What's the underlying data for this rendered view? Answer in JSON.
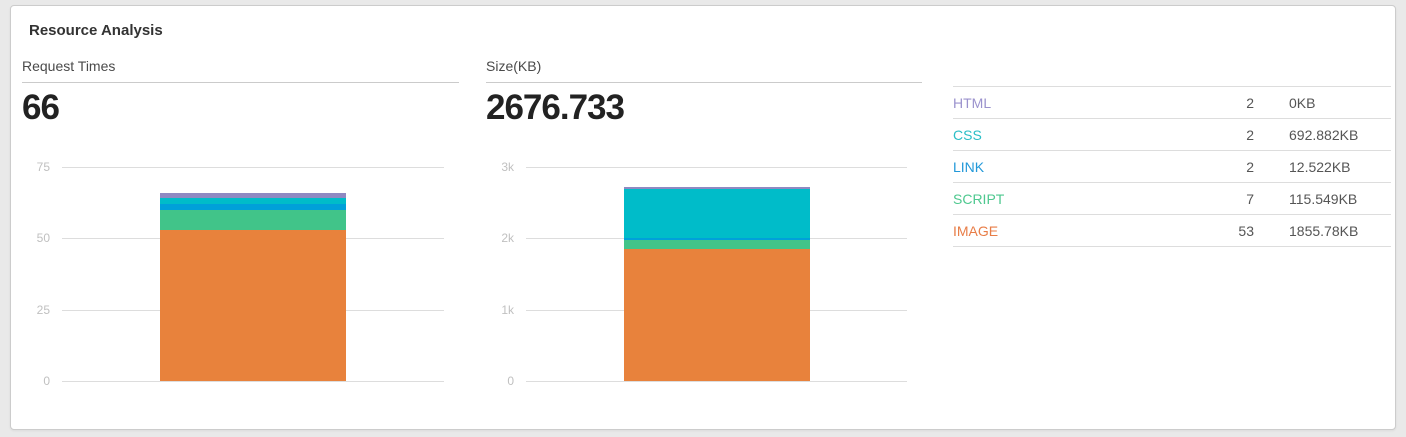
{
  "title": "Resource Analysis",
  "chart_data": [
    {
      "id": "request-times",
      "type": "bar",
      "stacked": true,
      "title": "Request Times",
      "total": "66",
      "ylim": [
        0,
        75
      ],
      "ymax": 75,
      "grid": true,
      "ticks": [
        {
          "value": 75,
          "label": "75"
        },
        {
          "value": 50,
          "label": "50"
        },
        {
          "value": 25,
          "label": "25"
        },
        {
          "value": 0,
          "label": "0"
        }
      ],
      "segments": [
        {
          "name": "HTML",
          "value": 2,
          "color": "#8f89c2"
        },
        {
          "name": "CSS",
          "value": 2,
          "color": "#00bcc9"
        },
        {
          "name": "LINK",
          "value": 2,
          "color": "#00a0d9"
        },
        {
          "name": "SCRIPT",
          "value": 7,
          "color": "#41c489"
        },
        {
          "name": "IMAGE",
          "value": 53,
          "color": "#e8823c"
        }
      ]
    },
    {
      "id": "size-kb",
      "type": "bar",
      "stacked": true,
      "title": "Size(KB)",
      "total": "2676.733",
      "ylim": [
        0,
        3000
      ],
      "ymax": 3000,
      "grid": true,
      "ticks": [
        {
          "value": 3000,
          "label": "3k"
        },
        {
          "value": 2000,
          "label": "2k"
        },
        {
          "value": 1000,
          "label": "1k"
        },
        {
          "value": 0,
          "label": "0"
        }
      ],
      "segments": [
        {
          "name": "HTML",
          "value": 0,
          "color": "#8f89c2"
        },
        {
          "name": "CSS",
          "value": 692.882,
          "color": "#00bcc9"
        },
        {
          "name": "LINK",
          "value": 12.522,
          "color": "#00a0d9"
        },
        {
          "name": "SCRIPT",
          "value": 115.549,
          "color": "#41c489"
        },
        {
          "name": "IMAGE",
          "value": 1855.78,
          "color": "#e8823c"
        }
      ]
    }
  ],
  "table": {
    "rows": [
      {
        "type": "HTML",
        "color": "#9b92cd",
        "count": "2",
        "size": "0KB"
      },
      {
        "type": "CSS",
        "color": "#2bbec6",
        "count": "2",
        "size": "692.882KB"
      },
      {
        "type": "LINK",
        "color": "#2399d9",
        "count": "2",
        "size": "12.522KB"
      },
      {
        "type": "SCRIPT",
        "color": "#4ec88f",
        "count": "7",
        "size": "115.549KB"
      },
      {
        "type": "IMAGE",
        "color": "#e87d47",
        "count": "53",
        "size": "1855.78KB"
      }
    ]
  }
}
